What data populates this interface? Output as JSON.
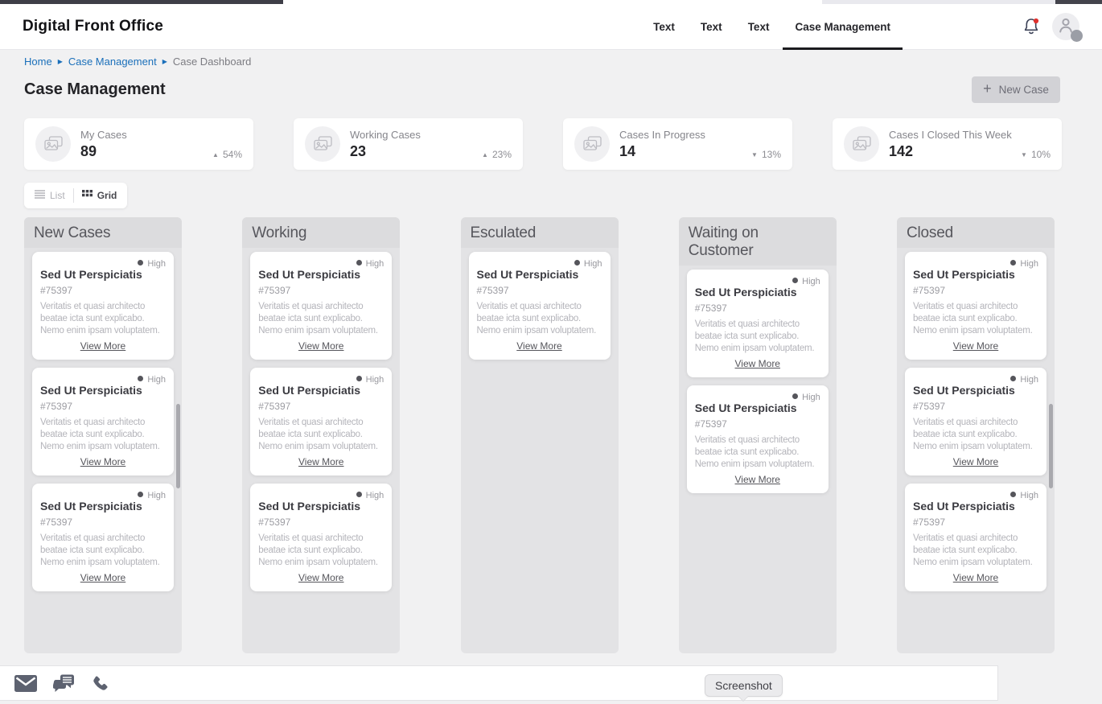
{
  "header": {
    "brand": "Digital Front Office",
    "nav_items": [
      {
        "label": "Text",
        "active": false
      },
      {
        "label": "Text",
        "active": false
      },
      {
        "label": "Text",
        "active": false
      },
      {
        "label": "Case Management",
        "active": true
      }
    ],
    "notification_dot": true
  },
  "breadcrumb": {
    "separator": "▶",
    "items": [
      {
        "label": "Home",
        "link": true
      },
      {
        "label": "Case Management",
        "link": true
      },
      {
        "label": "Case Dashboard",
        "link": false
      }
    ]
  },
  "page": {
    "title": "Case Management",
    "new_case_plus": "+",
    "new_case_label": "New Case"
  },
  "stats": [
    {
      "label": "My Cases",
      "value": "89",
      "arrow": "▲",
      "delta": "54%",
      "direction": "up"
    },
    {
      "label": "Working Cases",
      "value": "23",
      "arrow": "▲",
      "delta": "23%",
      "direction": "up"
    },
    {
      "label": "Cases In Progress",
      "value": "14",
      "arrow": "▼",
      "delta": "13%",
      "direction": "down"
    },
    {
      "label": "Cases I Closed This Week",
      "value": "142",
      "arrow": "▼",
      "delta": "10%",
      "direction": "down"
    }
  ],
  "view_toggle": {
    "list_label": "List",
    "grid_label": "Grid",
    "active": "grid"
  },
  "kanban": {
    "columns": [
      {
        "title": "New Cases",
        "scrollbar": true,
        "cards": [
          {
            "priority": "High",
            "title": "Sed Ut Perspiciatis",
            "case_id": "#75397",
            "description": "Veritatis et quasi architecto beatae icta sunt explicabo. Nemo enim ipsam voluptatem.",
            "link": "View More"
          },
          {
            "priority": "High",
            "title": "Sed Ut Perspiciatis",
            "case_id": "#75397",
            "description": "Veritatis et quasi architecto beatae icta sunt explicabo. Nemo enim ipsam voluptatem.",
            "link": "View More"
          },
          {
            "priority": "High",
            "title": "Sed Ut Perspiciatis",
            "case_id": "#75397",
            "description": "Veritatis et quasi architecto beatae icta sunt explicabo. Nemo enim ipsam voluptatem.",
            "link": "View More"
          }
        ]
      },
      {
        "title": "Working",
        "scrollbar": false,
        "cards": [
          {
            "priority": "High",
            "title": "Sed Ut Perspiciatis",
            "case_id": "#75397",
            "description": "Veritatis et quasi architecto beatae icta sunt explicabo. Nemo enim ipsam voluptatem.",
            "link": "View More"
          },
          {
            "priority": "High",
            "title": "Sed Ut Perspiciatis",
            "case_id": "#75397",
            "description": "Veritatis et quasi architecto beatae icta sunt explicabo. Nemo enim ipsam voluptatem.",
            "link": "View More"
          },
          {
            "priority": "High",
            "title": "Sed Ut Perspiciatis",
            "case_id": "#75397",
            "description": "Veritatis et quasi architecto beatae icta sunt explicabo. Nemo enim ipsam voluptatem.",
            "link": "View More"
          }
        ]
      },
      {
        "title": "Esculated",
        "scrollbar": false,
        "cards": [
          {
            "priority": "High",
            "title": "Sed Ut Perspiciatis",
            "case_id": "#75397",
            "description": "Veritatis et quasi architecto beatae icta sunt explicabo. Nemo enim ipsam voluptatem.",
            "link": "View More"
          }
        ]
      },
      {
        "title": "Waiting on Customer",
        "scrollbar": false,
        "cards": [
          {
            "priority": "High",
            "title": "Sed Ut Perspiciatis",
            "case_id": "#75397",
            "description": "Veritatis et quasi architecto beatae icta sunt explicabo. Nemo enim ipsam voluptatem.",
            "link": "View More"
          },
          {
            "priority": "High",
            "title": "Sed Ut Perspiciatis",
            "case_id": "#75397",
            "description": "Veritatis et quasi architecto beatae icta sunt explicabo. Nemo enim ipsam voluptatem.",
            "link": "View More"
          }
        ]
      },
      {
        "title": "Closed",
        "scrollbar": true,
        "cards": [
          {
            "priority": "High",
            "title": "Sed Ut Perspiciatis",
            "case_id": "#75397",
            "description": "Veritatis et quasi architecto beatae icta sunt explicabo. Nemo enim ipsam voluptatem.",
            "link": "View More"
          },
          {
            "priority": "High",
            "title": "Sed Ut Perspiciatis",
            "case_id": "#75397",
            "description": "Veritatis et quasi architecto beatae icta sunt explicabo. Nemo enim ipsam voluptatem.",
            "link": "View More"
          },
          {
            "priority": "High",
            "title": "Sed Ut Perspiciatis",
            "case_id": "#75397",
            "description": "Veritatis et quasi architecto beatae icta sunt explicabo. Nemo enim ipsam voluptatem.",
            "link": "View More"
          }
        ]
      }
    ]
  },
  "bottom_bar": {
    "icons": [
      "email-icon",
      "chat-icon",
      "phone-icon"
    ],
    "tooltip": "Screenshot"
  },
  "colors": {
    "link_blue": "#1a6fba",
    "notification_red": "#e0312d",
    "nav_underline": "#1b1b1f",
    "column_bg": "#e3e3e5",
    "icon_gray": "#5d6270"
  }
}
